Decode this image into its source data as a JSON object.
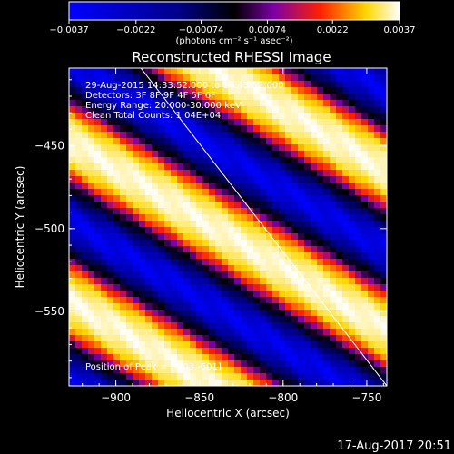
{
  "chart_data": {
    "type": "heatmap",
    "title": "Reconstructed RHESSI Image",
    "xlabel": "Heliocentric X (arcsec)",
    "ylabel": "Heliocentric Y (arcsec)",
    "xlim": [
      -928,
      -738
    ],
    "ylim": [
      -595,
      -403
    ],
    "x_ticks": [
      {
        "value": -900,
        "label": "−900"
      },
      {
        "value": -850,
        "label": "−850"
      },
      {
        "value": -800,
        "label": "−800"
      },
      {
        "value": -750,
        "label": "−750"
      }
    ],
    "y_ticks": [
      {
        "value": -450,
        "label": "−450"
      },
      {
        "value": -500,
        "label": "−500"
      },
      {
        "value": -550,
        "label": "−550"
      }
    ],
    "colorbar": {
      "min": -0.0037,
      "max": 0.0037,
      "unit_label": "(photons cm⁻² s⁻¹ asec⁻²)",
      "ticks": [
        {
          "value": -0.0037,
          "label": "−0.0037"
        },
        {
          "value": -0.0022,
          "label": "−0.0022"
        },
        {
          "value": -0.00074,
          "label": "−0.00074"
        },
        {
          "value": 0.00074,
          "label": "0.00074"
        },
        {
          "value": 0.0022,
          "label": "0.0022"
        },
        {
          "value": 0.0037,
          "label": "0.0037"
        }
      ]
    },
    "annotations": [
      "29-Aug-2015 14:33:52.000 to 14:43:52.000",
      "Detectors: 3F 8F 9F 4F 5F 6F",
      "Energy Range: 20.000-30.000 keV",
      "Clean     Total Counts: 1.04E+04",
      "Position of Peak = [-903,-601]"
    ],
    "limb_line": [
      [
        -885,
        -403
      ],
      [
        -738,
        -595
      ]
    ],
    "fringe_pattern": {
      "slope": -0.6,
      "period_arcsec": 96,
      "peak_offset_at_x_minus_900_arcsec": -464,
      "amplitude": 0.0037,
      "colormap": [
        "#0000ff",
        "#000000",
        "#7c00a6",
        "#ff2000",
        "#ffd800",
        "#ffffff"
      ]
    },
    "grid": false,
    "legend": "none"
  },
  "footer": {
    "timestamp": "17-Aug-2017 20:51"
  }
}
